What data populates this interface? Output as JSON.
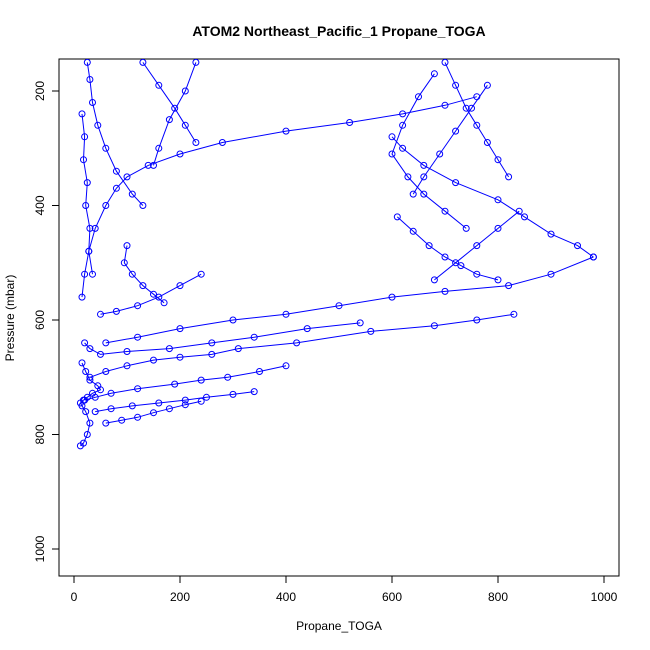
{
  "chart_data": {
    "type": "line",
    "title": "ATOM2 Northeast_Pacific_1 Propane_TOGA",
    "xlabel": "Propane_TOGA",
    "ylabel": "Pressure (mbar)",
    "xlim": [
      0,
      1000
    ],
    "ylim": [
      1040,
      150
    ],
    "y_inverted": true,
    "grid": false,
    "xticks": [
      0,
      200,
      400,
      600,
      800,
      1000
    ],
    "yticks": [
      200,
      400,
      600,
      800,
      1000
    ],
    "xtick_labels": [
      "0",
      "200",
      "400",
      "600",
      "800",
      "1000"
    ],
    "ytick_labels": [
      "200",
      "400",
      "600",
      "800",
      "1000"
    ],
    "color": "#0000ff",
    "series": [
      {
        "x": [
          12,
          18,
          25,
          30,
          22,
          15,
          12,
          18,
          25,
          35,
          50,
          45,
          30,
          22,
          15
        ],
        "y": [
          820,
          815,
          800,
          780,
          760,
          750,
          745,
          740,
          735,
          728,
          722,
          715,
          705,
          690,
          675
        ]
      },
      {
        "x": [
          15,
          20,
          28,
          40,
          60,
          80,
          100,
          140,
          200,
          280,
          400,
          520,
          620,
          700,
          760
        ],
        "y": [
          560,
          520,
          480,
          440,
          400,
          370,
          350,
          330,
          310,
          290,
          270,
          255,
          240,
          225,
          210
        ]
      },
      {
        "x": [
          20,
          30,
          50,
          100,
          180,
          260,
          340,
          440,
          540
        ],
        "y": [
          640,
          650,
          660,
          655,
          650,
          640,
          630,
          615,
          605
        ]
      },
      {
        "x": [
          600,
          620,
          660,
          720,
          800,
          850,
          900,
          950,
          980
        ],
        "y": [
          280,
          300,
          330,
          360,
          390,
          420,
          450,
          470,
          490
        ]
      },
      {
        "x": [
          980,
          900,
          820,
          700,
          600,
          500,
          400,
          300,
          200,
          120,
          60
        ],
        "y": [
          490,
          520,
          540,
          550,
          560,
          575,
          590,
          600,
          615,
          630,
          640
        ]
      },
      {
        "x": [
          30,
          60,
          100,
          150,
          200,
          260,
          310,
          420,
          560,
          680,
          760,
          830
        ],
        "y": [
          700,
          690,
          680,
          670,
          665,
          660,
          650,
          640,
          620,
          610,
          600,
          590
        ]
      },
      {
        "x": [
          20,
          40,
          70,
          120,
          190,
          240,
          290,
          350,
          400
        ],
        "y": [
          740,
          735,
          728,
          720,
          712,
          705,
          700,
          690,
          680
        ]
      },
      {
        "x": [
          40,
          70,
          110,
          160,
          210,
          250,
          300,
          340
        ],
        "y": [
          760,
          755,
          750,
          745,
          740,
          735,
          730,
          725
        ]
      },
      {
        "x": [
          60,
          90,
          120,
          150,
          180,
          210,
          240
        ],
        "y": [
          780,
          775,
          770,
          762,
          755,
          748,
          742
        ]
      },
      {
        "x": [
          25,
          30,
          35,
          45,
          60,
          80,
          110,
          130
        ],
        "y": [
          150,
          180,
          220,
          260,
          300,
          340,
          380,
          400
        ]
      },
      {
        "x": [
          130,
          160,
          190,
          210,
          230
        ],
        "y": [
          150,
          190,
          230,
          260,
          290
        ]
      },
      {
        "x": [
          230,
          210,
          180,
          160,
          150
        ],
        "y": [
          150,
          200,
          250,
          300,
          330
        ]
      },
      {
        "x": [
          700,
          720,
          740,
          760,
          780,
          800,
          820
        ],
        "y": [
          150,
          190,
          230,
          260,
          290,
          320,
          350
        ]
      },
      {
        "x": [
          680,
          650,
          620,
          600,
          630,
          660,
          700,
          740
        ],
        "y": [
          170,
          210,
          260,
          310,
          350,
          380,
          410,
          440
        ]
      },
      {
        "x": [
          610,
          640,
          670,
          700,
          730,
          760,
          800
        ],
        "y": [
          420,
          445,
          470,
          490,
          505,
          520,
          530
        ]
      },
      {
        "x": [
          780,
          750,
          720,
          690,
          660,
          640
        ],
        "y": [
          190,
          230,
          270,
          310,
          350,
          380
        ]
      },
      {
        "x": [
          840,
          800,
          760,
          720,
          680
        ],
        "y": [
          410,
          440,
          470,
          500,
          530
        ]
      },
      {
        "x": [
          15,
          20,
          18,
          25,
          22,
          30,
          28,
          35
        ],
        "y": [
          240,
          280,
          320,
          360,
          400,
          440,
          480,
          520
        ]
      },
      {
        "x": [
          100,
          95,
          110,
          130,
          150,
          170
        ],
        "y": [
          470,
          500,
          520,
          540,
          555,
          570
        ]
      },
      {
        "x": [
          50,
          80,
          120,
          160,
          200,
          240
        ],
        "y": [
          590,
          585,
          575,
          560,
          540,
          520
        ]
      }
    ]
  }
}
